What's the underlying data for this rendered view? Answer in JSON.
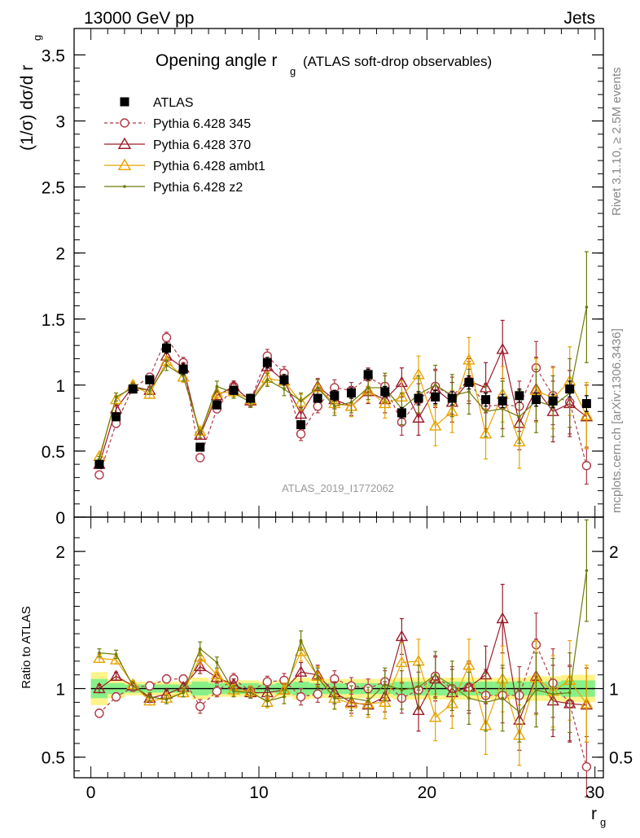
{
  "header": {
    "left": "13000 GeV pp",
    "right": "Jets"
  },
  "side": {
    "rivet": "Rivet 3.1.10, ≥ 2.5M events",
    "mcplots": "mcplots.cern.ch [arXiv:1306.3436]"
  },
  "chart_data": [
    {
      "type": "scatter",
      "title_main": "Opening angle r",
      "title_sub": "g",
      "title_tail": "(ATLAS soft-drop observables)",
      "ylabel_main": "(1/σ) dσ/d r",
      "ylabel_sub": "g",
      "analysis_label": "ATLAS_2019_I1772062",
      "xlim": [
        -1,
        30.5
      ],
      "ylim": [
        0,
        3.7
      ],
      "yticks": [
        0,
        0.5,
        1,
        1.5,
        2,
        2.5,
        3,
        3.5
      ],
      "ytick_labels": [
        "0",
        "0.5",
        "1",
        "1.5",
        "2",
        "2.5",
        "3",
        "3.5"
      ],
      "x": [
        0.5,
        1.5,
        2.5,
        3.5,
        4.5,
        5.5,
        6.5,
        7.5,
        8.5,
        9.5,
        10.5,
        11.5,
        12.5,
        13.5,
        14.5,
        15.5,
        16.5,
        17.5,
        18.5,
        19.5,
        20.5,
        21.5,
        22.5,
        23.5,
        24.5,
        25.5,
        26.5,
        27.5,
        28.5,
        29.5
      ],
      "legend_position": "top-left",
      "series": [
        {
          "name": "ATLAS",
          "color": "#000000",
          "marker": "square",
          "values": [
            0.4,
            0.76,
            0.97,
            1.04,
            1.28,
            1.12,
            0.53,
            0.85,
            0.96,
            0.9,
            1.17,
            1.04,
            0.7,
            0.9,
            0.92,
            0.94,
            1.08,
            0.95,
            0.79,
            0.9,
            0.91,
            0.9,
            1.02,
            0.89,
            0.88,
            0.92,
            0.89,
            0.88,
            0.97,
            0.86
          ],
          "errors": [
            0.03,
            0.03,
            0.03,
            0.03,
            0.04,
            0.04,
            0.03,
            0.03,
            0.03,
            0.03,
            0.04,
            0.04,
            0.03,
            0.03,
            0.04,
            0.04,
            0.04,
            0.04,
            0.04,
            0.05,
            0.05,
            0.05,
            0.05,
            0.05,
            0.05,
            0.05,
            0.05,
            0.05,
            0.06,
            0.06
          ]
        },
        {
          "name": "Pythia 6.428 345",
          "color": "#b03a48",
          "marker": "open-circle",
          "dashed": true,
          "values": [
            0.32,
            0.71,
            0.98,
            1.06,
            1.36,
            1.17,
            0.45,
            0.82,
            0.99,
            0.88,
            1.22,
            1.09,
            0.63,
            0.84,
            0.98,
            0.96,
            1.06,
            0.99,
            0.72,
            0.89,
            0.99,
            0.92,
            1.03,
            0.84,
            0.85,
            0.84,
            1.13,
            0.92,
            0.87,
            0.39
          ],
          "errors": [
            0.02,
            0.03,
            0.03,
            0.03,
            0.04,
            0.04,
            0.03,
            0.03,
            0.04,
            0.04,
            0.05,
            0.05,
            0.05,
            0.05,
            0.06,
            0.06,
            0.07,
            0.08,
            0.1,
            0.12,
            0.13,
            0.14,
            0.15,
            0.17,
            0.18,
            0.19,
            0.2,
            0.22,
            0.24,
            0.14
          ]
        },
        {
          "name": "Pythia 6.428 370",
          "color": "#9b1c2a",
          "marker": "open-triangle",
          "values": [
            0.4,
            0.82,
            0.99,
            0.96,
            1.22,
            1.13,
            0.62,
            0.92,
            0.99,
            0.88,
            1.14,
            1.03,
            0.78,
            0.99,
            0.89,
            0.84,
            0.95,
            0.89,
            1.02,
            0.75,
            0.97,
            0.87,
            1.03,
            0.98,
            1.27,
            0.71,
            0.97,
            0.8,
            0.86,
            0.76
          ],
          "errors": [
            0.02,
            0.03,
            0.03,
            0.03,
            0.04,
            0.04,
            0.03,
            0.04,
            0.04,
            0.04,
            0.05,
            0.05,
            0.05,
            0.06,
            0.07,
            0.07,
            0.09,
            0.1,
            0.11,
            0.13,
            0.14,
            0.15,
            0.17,
            0.19,
            0.22,
            0.2,
            0.24,
            0.23,
            0.25,
            0.24
          ]
        },
        {
          "name": "Pythia 6.428 ambt1",
          "color": "#e8a400",
          "marker": "open-triangle",
          "values": [
            0.46,
            0.89,
            1.0,
            0.93,
            1.18,
            1.06,
            0.65,
            0.94,
            0.95,
            0.89,
            1.05,
            1.03,
            0.87,
            0.98,
            0.86,
            0.84,
            0.96,
            0.86,
            0.91,
            1.08,
            0.69,
            0.8,
            1.19,
            0.63,
            0.93,
            0.57,
            0.96,
            0.9,
            1.03,
            0.77
          ],
          "errors": [
            0.02,
            0.03,
            0.03,
            0.03,
            0.04,
            0.04,
            0.03,
            0.04,
            0.04,
            0.04,
            0.05,
            0.05,
            0.06,
            0.06,
            0.07,
            0.08,
            0.09,
            0.11,
            0.12,
            0.14,
            0.15,
            0.16,
            0.17,
            0.19,
            0.21,
            0.2,
            0.24,
            0.23,
            0.26,
            0.25
          ]
        },
        {
          "name": "Pythia 6.428 z2",
          "color": "#6e7a0a",
          "marker": "dot",
          "values": [
            0.44,
            0.91,
            0.98,
            0.96,
            1.15,
            1.07,
            0.63,
            0.99,
            0.94,
            0.87,
            1.04,
            0.97,
            0.88,
            0.98,
            0.84,
            0.87,
            0.98,
            0.98,
            0.82,
            0.93,
            1.0,
            0.92,
            0.95,
            0.8,
            0.82,
            0.76,
            0.88,
            0.84,
            0.94,
            1.59
          ],
          "errors": [
            0.02,
            0.03,
            0.03,
            0.03,
            0.04,
            0.04,
            0.03,
            0.04,
            0.04,
            0.04,
            0.05,
            0.05,
            0.06,
            0.06,
            0.07,
            0.08,
            0.09,
            0.11,
            0.12,
            0.14,
            0.15,
            0.16,
            0.17,
            0.19,
            0.21,
            0.2,
            0.24,
            0.23,
            0.26,
            0.42
          ]
        }
      ]
    },
    {
      "type": "scatter",
      "ylabel": "Ratio to ATLAS",
      "xlabel_main": "r",
      "xlabel_sub": "g",
      "xlim": [
        -1,
        30.5
      ],
      "ylim": [
        0.35,
        2.25
      ],
      "xticks": [
        0,
        10,
        20,
        30
      ],
      "xtick_labels": [
        "0",
        "10",
        "20",
        "30"
      ],
      "yticks": [
        0.5,
        1,
        2
      ],
      "ytick_labels": [
        "0.5",
        "1",
        "2"
      ],
      "x": [
        0.5,
        1.5,
        2.5,
        3.5,
        4.5,
        5.5,
        6.5,
        7.5,
        8.5,
        9.5,
        10.5,
        11.5,
        12.5,
        13.5,
        14.5,
        15.5,
        16.5,
        17.5,
        18.5,
        19.5,
        20.5,
        21.5,
        22.5,
        23.5,
        24.5,
        25.5,
        26.5,
        27.5,
        28.5,
        29.5
      ],
      "bands": {
        "inner_color": "#88f088",
        "outer_color": "#fff38a",
        "inner_halfwidth": [
          0.07,
          0.04,
          0.03,
          0.03,
          0.03,
          0.03,
          0.05,
          0.04,
          0.04,
          0.04,
          0.03,
          0.04,
          0.05,
          0.04,
          0.04,
          0.04,
          0.04,
          0.04,
          0.05,
          0.05,
          0.05,
          0.05,
          0.05,
          0.05,
          0.05,
          0.05,
          0.05,
          0.05,
          0.06,
          0.06
        ],
        "outer_halfwidth": [
          0.12,
          0.07,
          0.05,
          0.05,
          0.05,
          0.05,
          0.08,
          0.06,
          0.06,
          0.06,
          0.05,
          0.06,
          0.08,
          0.07,
          0.07,
          0.07,
          0.07,
          0.07,
          0.08,
          0.08,
          0.08,
          0.08,
          0.08,
          0.08,
          0.08,
          0.08,
          0.09,
          0.09,
          0.1,
          0.1
        ]
      },
      "series": [
        {
          "name": "Pythia 6.428 345",
          "color": "#b03a48",
          "marker": "open-circle",
          "dashed": true,
          "values": [
            0.82,
            0.94,
            1.01,
            1.02,
            1.07,
            1.07,
            0.87,
            0.98,
            1.07,
            0.98,
            1.05,
            1.06,
            0.94,
            0.96,
            1.07,
            1.02,
            1.0,
            1.05,
            0.93,
            0.99,
            1.09,
            1.0,
            1.01,
            0.95,
            0.95,
            0.95,
            1.32,
            1.04,
            0.89,
            0.43
          ],
          "errors": [
            0.03,
            0.03,
            0.03,
            0.03,
            0.03,
            0.03,
            0.05,
            0.04,
            0.04,
            0.04,
            0.04,
            0.05,
            0.06,
            0.06,
            0.06,
            0.06,
            0.07,
            0.08,
            0.11,
            0.13,
            0.15,
            0.16,
            0.17,
            0.19,
            0.2,
            0.21,
            0.23,
            0.25,
            0.27,
            0.22
          ]
        },
        {
          "name": "Pythia 6.428 370",
          "color": "#9b1c2a",
          "marker": "open-triangle",
          "values": [
            1.0,
            1.09,
            1.02,
            0.93,
            0.96,
            1.01,
            1.16,
            1.08,
            1.03,
            0.97,
            0.97,
            0.99,
            1.12,
            1.1,
            0.97,
            0.9,
            0.88,
            0.94,
            1.38,
            0.84,
            1.07,
            0.97,
            1.01,
            1.1,
            1.51,
            0.77,
            1.09,
            0.91,
            0.89,
            0.88
          ],
          "errors": [
            0.03,
            0.03,
            0.03,
            0.03,
            0.03,
            0.03,
            0.05,
            0.04,
            0.04,
            0.04,
            0.04,
            0.05,
            0.07,
            0.07,
            0.08,
            0.08,
            0.09,
            0.11,
            0.13,
            0.15,
            0.16,
            0.17,
            0.19,
            0.21,
            0.25,
            0.22,
            0.27,
            0.26,
            0.28,
            0.27
          ]
        },
        {
          "name": "Pythia 6.428 ambt1",
          "color": "#e8a400",
          "marker": "open-triangle",
          "values": [
            1.22,
            1.21,
            1.03,
            0.91,
            0.93,
            0.97,
            1.23,
            1.1,
            0.99,
            0.98,
            0.9,
            0.99,
            1.27,
            1.09,
            0.93,
            0.89,
            0.89,
            0.9,
            1.19,
            1.2,
            0.79,
            0.89,
            1.17,
            0.73,
            1.07,
            0.66,
            1.08,
            0.98,
            1.06,
            0.89
          ],
          "errors": [
            0.03,
            0.03,
            0.03,
            0.03,
            0.03,
            0.03,
            0.05,
            0.04,
            0.04,
            0.04,
            0.04,
            0.05,
            0.07,
            0.07,
            0.08,
            0.09,
            0.1,
            0.12,
            0.14,
            0.16,
            0.17,
            0.18,
            0.19,
            0.21,
            0.24,
            0.22,
            0.27,
            0.26,
            0.29,
            0.28
          ]
        },
        {
          "name": "Pythia 6.428 z2",
          "color": "#6e7a0a",
          "marker": "dot",
          "values": [
            1.26,
            1.25,
            1.02,
            0.94,
            0.92,
            0.97,
            1.29,
            1.19,
            0.98,
            0.97,
            0.91,
            0.94,
            1.35,
            1.08,
            0.93,
            0.93,
            0.91,
            1.03,
            0.99,
            1.01,
            1.1,
            1.02,
            0.93,
            0.9,
            0.93,
            0.83,
            0.99,
            0.96,
            0.97,
            1.86
          ],
          "errors": [
            0.03,
            0.03,
            0.03,
            0.03,
            0.03,
            0.03,
            0.05,
            0.04,
            0.04,
            0.04,
            0.04,
            0.05,
            0.07,
            0.07,
            0.08,
            0.09,
            0.1,
            0.12,
            0.14,
            0.16,
            0.17,
            0.18,
            0.19,
            0.21,
            0.24,
            0.22,
            0.27,
            0.26,
            0.29,
            0.37
          ]
        }
      ]
    }
  ]
}
